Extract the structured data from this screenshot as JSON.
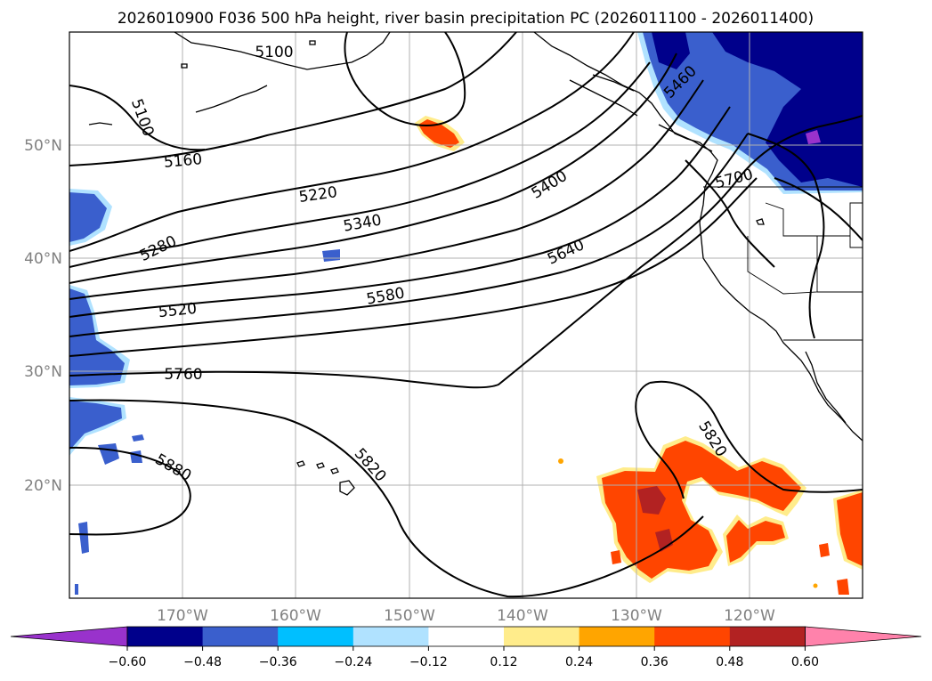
{
  "title": "2026010900 F036 500 hPa height, river basin precipitation PC (2026011100 - 2026011400)",
  "map": {
    "lon_ticks": [
      "170°W",
      "160°W",
      "150°W",
      "140°W",
      "130°W",
      "120°W"
    ],
    "lat_ticks": [
      "50°N",
      "40°N",
      "30°N",
      "20°N"
    ],
    "extent": {
      "lon": [
        -180,
        -110
      ],
      "lat": [
        10,
        60
      ]
    }
  },
  "contour_labels": [
    "5100",
    "5100",
    "5160",
    "5220",
    "5280",
    "5340",
    "5400",
    "5460",
    "5520",
    "5580",
    "5640",
    "5700",
    "5760",
    "5820",
    "5820",
    "5880"
  ],
  "colorbar": {
    "ticks": [
      "−0.60",
      "−0.48",
      "−0.36",
      "−0.24",
      "−0.12",
      "0.12",
      "0.24",
      "0.36",
      "0.48",
      "0.60"
    ],
    "colors": [
      "#9932cc",
      "#00008b",
      "#3a5fcd",
      "#00bfff",
      "#b0e2ff",
      "#ffffff",
      "#ffec8b",
      "#ffa500",
      "#ff4500",
      "#b22222",
      "#ff82ab"
    ]
  }
}
